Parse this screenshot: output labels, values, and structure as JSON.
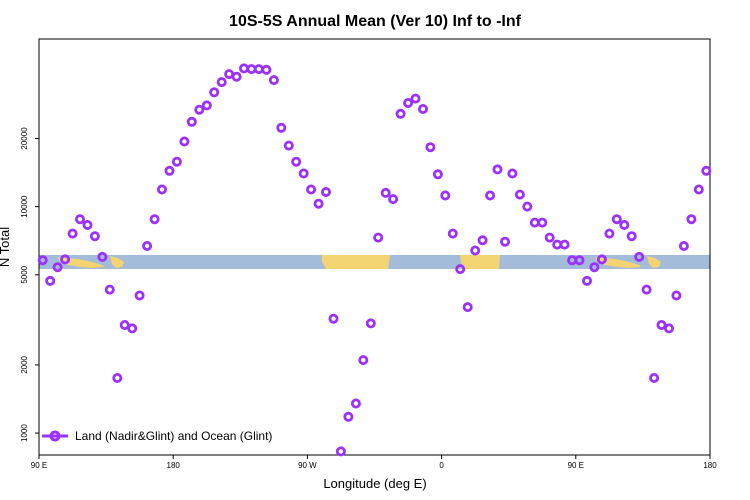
{
  "chart_data": {
    "type": "scatter",
    "title": "10S-5S Annual Mean (Ver 10)   Inf to -Inf",
    "xlabel": "Longitude (deg E)",
    "ylabel": "N Total",
    "x_tick_labels": [
      "90 E",
      "180",
      "90 W",
      "0",
      "90 E",
      "180"
    ],
    "y_tick_labels": [
      "1000",
      "2000",
      "5000",
      "10000",
      "20000"
    ],
    "y_ticks": [
      1000,
      2000,
      5000,
      10000,
      20000
    ],
    "y_scale": "log",
    "xlim": [
      90,
      540
    ],
    "ylim": [
      800,
      55000
    ],
    "grid": false,
    "legend_position": "bottom-left",
    "series": [
      {
        "name": "Land (Nadir&Glint) and Ocean (Glint)",
        "color": "#9b30ff",
        "marker": "open-circle",
        "x": [
          92.5,
          97.5,
          102.5,
          107.5,
          112.5,
          117.5,
          122.5,
          127.5,
          132.5,
          137.5,
          142.5,
          147.5,
          152.5,
          157.5,
          162.5,
          167.5,
          172.5,
          177.5,
          182.5,
          187.5,
          192.5,
          197.5,
          202.5,
          207.5,
          212.5,
          217.5,
          222.5,
          227.5,
          232.5,
          237.5,
          242.5,
          247.5,
          252.5,
          257.5,
          262.5,
          267.5,
          272.5,
          277.5,
          282.5,
          287.5,
          292.5,
          297.5,
          302.5,
          307.5,
          312.5,
          317.5,
          322.5,
          327.5,
          332.5,
          337.5,
          342.5,
          347.5,
          352.5,
          357.5,
          362.5,
          367.5,
          372.5,
          377.5,
          382.5,
          387.5,
          392.5,
          397.5,
          402.5,
          407.5,
          412.5,
          417.5,
          422.5,
          427.5,
          432.5,
          437.5,
          442.5,
          447.5,
          452.5,
          457.5,
          462.5,
          467.5,
          472.5,
          477.5,
          482.5,
          487.5,
          492.5,
          497.5,
          502.5,
          507.5,
          512.5,
          517.5,
          522.5,
          527.5,
          532.5,
          537.5
        ],
        "values": [
          5800,
          4700,
          5400,
          5850,
          7600,
          8800,
          8300,
          7400,
          6000,
          4300,
          1750,
          3000,
          2900,
          4050,
          6700,
          8800,
          11900,
          14400,
          15800,
          19400,
          23700,
          26800,
          28000,
          32000,
          35500,
          38500,
          37500,
          40800,
          40500,
          40500,
          40200,
          36200,
          22300,
          18600,
          15800,
          14000,
          11900,
          10300,
          11600,
          3200,
          830,
          1180,
          1350,
          2100,
          3050,
          7300,
          11500,
          10800,
          25700,
          28700,
          30000,
          27000,
          18300,
          13900,
          11200,
          7600,
          5300,
          3600,
          6400,
          7100,
          11200,
          14600,
          7000,
          14000,
          11300,
          10000,
          8500,
          8500,
          7300,
          6800,
          6800,
          5800,
          5800,
          4700,
          5400,
          5850,
          7600,
          8800,
          8300,
          7400,
          6000,
          4300,
          1750,
          3000,
          2900,
          4050,
          6700,
          8800,
          11900,
          14400
        ]
      }
    ]
  }
}
